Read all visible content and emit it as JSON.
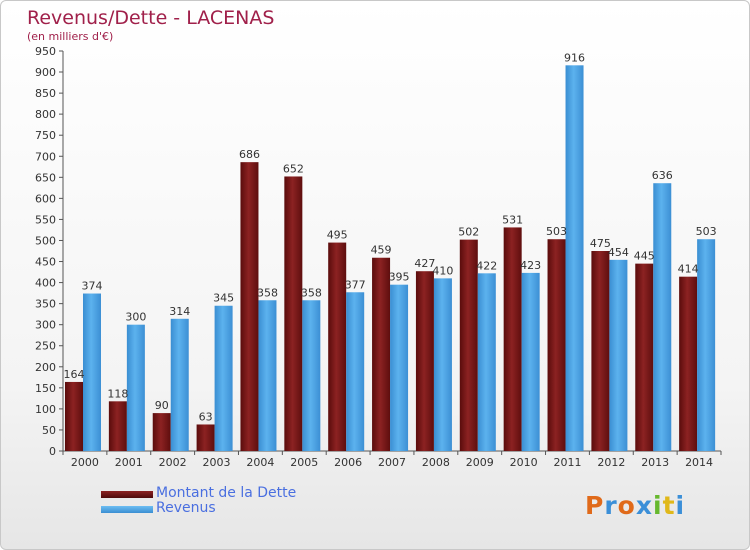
{
  "title": "Revenus/Dette - LACENAS",
  "subtitle": "(en milliers d'€)",
  "logo": {
    "letters": [
      "P",
      "r",
      "o",
      "x",
      "i",
      "t",
      "i"
    ],
    "colors": [
      "#e06a1a",
      "#3b8fd8",
      "#e06a1a",
      "#3b8fd8",
      "#66b82e",
      "#e0b81a",
      "#3b8fd8"
    ]
  },
  "colors": {
    "dette": "#7a1414",
    "revenus": "#4aa3e6"
  },
  "chart_data": {
    "type": "bar",
    "categories": [
      "2000",
      "2001",
      "2002",
      "2003",
      "2004",
      "2005",
      "2006",
      "2007",
      "2008",
      "2009",
      "2010",
      "2011",
      "2012",
      "2013",
      "2014"
    ],
    "series": [
      {
        "name": "Montant de la Dette",
        "values": [
          164,
          118,
          90,
          63,
          686,
          652,
          495,
          459,
          427,
          502,
          531,
          503,
          475,
          445,
          414
        ]
      },
      {
        "name": "Revenus",
        "values": [
          374,
          300,
          314,
          345,
          358,
          358,
          377,
          395,
          410,
          422,
          423,
          916,
          454,
          636,
          503
        ]
      }
    ],
    "ylim": [
      0,
      950
    ],
    "yticks": [
      0,
      50,
      100,
      150,
      200,
      250,
      300,
      350,
      400,
      450,
      500,
      550,
      600,
      650,
      700,
      750,
      800,
      850,
      900,
      950
    ],
    "grid": false,
    "legend": "bottom-left"
  }
}
